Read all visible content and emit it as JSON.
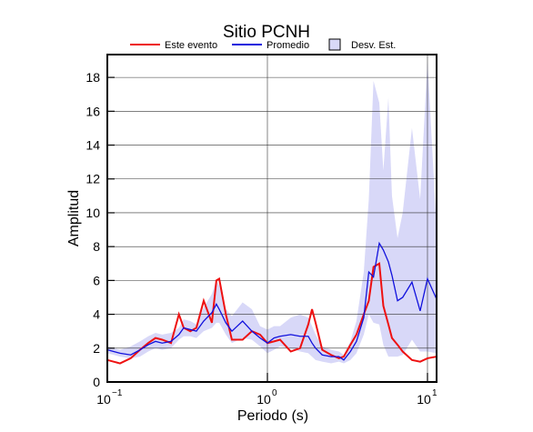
{
  "chart_data": {
    "type": "line",
    "title": "Sitio PCNH",
    "xlabel": "Periodo (s)",
    "ylabel": "Amplitud",
    "xscale": "log",
    "grid": true,
    "xlim": [
      0.1,
      11.4
    ],
    "ylim": [
      0,
      19.35
    ],
    "xticks": [
      {
        "value": 0.1,
        "label": "10",
        "exponent": "−1"
      },
      {
        "value": 1,
        "label": "10",
        "exponent": "0"
      },
      {
        "value": 10,
        "label": "10",
        "exponent": "1"
      }
    ],
    "yticks": [
      0,
      2,
      4,
      6,
      8,
      10,
      12,
      14,
      16,
      18
    ],
    "x": [
      0.1,
      0.12,
      0.14,
      0.16,
      0.18,
      0.2,
      0.22,
      0.25,
      0.28,
      0.3,
      0.33,
      0.36,
      0.4,
      0.45,
      0.48,
      0.5,
      0.55,
      0.6,
      0.7,
      0.8,
      0.9,
      1.0,
      1.1,
      1.2,
      1.4,
      1.6,
      1.8,
      1.9,
      2.0,
      2.2,
      2.5,
      2.8,
      3.0,
      3.3,
      3.6,
      4.0,
      4.3,
      4.6,
      5.0,
      5.3,
      5.7,
      6.0,
      6.5,
      7.0,
      8.0,
      9.0,
      10,
      11.4
    ],
    "band": {
      "name": "Desv. Est.",
      "color": "#d8d8f8",
      "lower": [
        1.7,
        1.5,
        1.4,
        1.5,
        1.8,
        2.0,
        1.9,
        2.0,
        2.5,
        2.7,
        2.7,
        2.6,
        3.0,
        3.2,
        3.5,
        3.5,
        2.8,
        2.3,
        2.6,
        2.5,
        2.1,
        1.7,
        1.9,
        2.1,
        2.0,
        1.8,
        1.7,
        1.5,
        1.3,
        1.2,
        1.1,
        1.2,
        1.1,
        1.3,
        1.7,
        2.8,
        4.0,
        3.5,
        3.4,
        2.2,
        1.5,
        1.5,
        1.5,
        1.6,
        2.5,
        1.8,
        1.8,
        1.7
      ],
      "upper": [
        2.1,
        1.9,
        2.1,
        2.4,
        2.7,
        2.9,
        2.8,
        2.9,
        3.2,
        3.7,
        3.6,
        3.4,
        4.4,
        5.2,
        6.0,
        5.7,
        4.3,
        3.9,
        4.7,
        4.3,
        3.3,
        3.1,
        3.3,
        3.3,
        3.8,
        4.0,
        3.8,
        3.3,
        2.8,
        2.1,
        1.9,
        1.8,
        1.6,
        2.4,
        3.6,
        6.5,
        10.8,
        17.8,
        16.5,
        12.5,
        16.8,
        11.0,
        8.5,
        10.0,
        15.0,
        10.8,
        19.0,
        9.0
      ]
    },
    "series": [
      {
        "name": "Este evento",
        "color": "#ee1111",
        "values": [
          1.3,
          1.1,
          1.4,
          1.9,
          2.3,
          2.6,
          2.5,
          2.3,
          4.0,
          3.2,
          3.0,
          3.2,
          4.8,
          3.5,
          6.0,
          6.1,
          4.0,
          2.5,
          2.5,
          3.0,
          2.8,
          2.3,
          2.4,
          2.5,
          1.8,
          2.0,
          3.4,
          4.3,
          3.5,
          1.9,
          1.6,
          1.4,
          1.5,
          2.2,
          2.8,
          4.0,
          4.8,
          6.8,
          7.0,
          4.5,
          3.4,
          2.6,
          2.2,
          1.8,
          1.3,
          1.2,
          1.4,
          1.5
        ]
      },
      {
        "name": "Promedio",
        "color": "#1111dd",
        "values": [
          1.9,
          1.7,
          1.6,
          1.9,
          2.2,
          2.4,
          2.3,
          2.4,
          2.8,
          3.2,
          3.1,
          3.0,
          3.6,
          4.1,
          4.6,
          4.3,
          3.5,
          3.0,
          3.6,
          3.0,
          2.6,
          2.3,
          2.6,
          2.7,
          2.8,
          2.7,
          2.7,
          2.3,
          2.0,
          1.6,
          1.5,
          1.5,
          1.3,
          1.8,
          2.4,
          3.8,
          6.5,
          6.2,
          8.2,
          7.8,
          7.1,
          6.3,
          4.8,
          5.0,
          5.9,
          4.2,
          6.1,
          4.9
        ]
      }
    ]
  }
}
